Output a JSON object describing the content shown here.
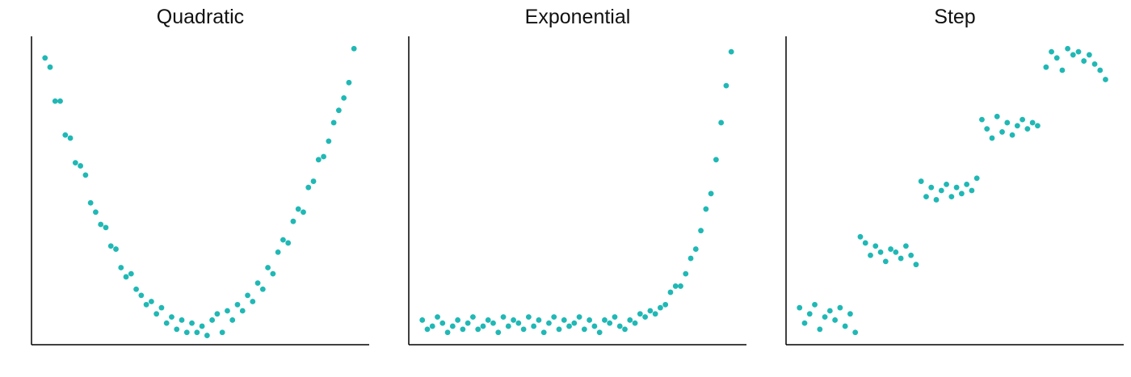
{
  "chart_data": [
    {
      "type": "scatter",
      "title": "Quadratic",
      "color": "#20b8b5",
      "xlim": [
        0,
        100
      ],
      "ylim": [
        0,
        100
      ],
      "x": [
        4,
        5.5,
        7,
        8.5,
        10,
        11.5,
        13,
        14.5,
        16,
        17.5,
        19,
        20.5,
        22,
        23.5,
        25,
        26.5,
        28,
        29.5,
        31,
        32.5,
        34,
        35.5,
        37,
        38.5,
        40,
        41.5,
        43,
        44.5,
        46,
        47.5,
        49,
        50.5,
        52,
        53.5,
        55,
        56.5,
        58,
        59.5,
        61,
        62.5,
        64,
        65.5,
        67,
        68.5,
        70,
        71.5,
        73,
        74.5,
        76,
        77.5,
        79,
        80.5,
        82,
        83.5,
        85,
        86.5,
        88,
        89.5,
        91,
        92.5,
        94,
        95.5
      ],
      "values": [
        93,
        90,
        79,
        79,
        68,
        67,
        59,
        58,
        55,
        46,
        43,
        39,
        38,
        32,
        31,
        25,
        22,
        23,
        18,
        16,
        13,
        14,
        10,
        12,
        7,
        9,
        5,
        8,
        4,
        7,
        4,
        6,
        3,
        8,
        10,
        4,
        11,
        8,
        13,
        11,
        16,
        14,
        20,
        18,
        25,
        23,
        30,
        34,
        33,
        40,
        44,
        43,
        51,
        53,
        60,
        61,
        66,
        72,
        76,
        80,
        85,
        96
      ]
    },
    {
      "type": "scatter",
      "title": "Exponential",
      "color": "#20b8b5",
      "xlim": [
        0,
        100
      ],
      "ylim": [
        0,
        100
      ],
      "x": [
        4,
        5.5,
        7,
        8.5,
        10,
        11.5,
        13,
        14.5,
        16,
        17.5,
        19,
        20.5,
        22,
        23.5,
        25,
        26.5,
        28,
        29.5,
        31,
        32.5,
        34,
        35.5,
        37,
        38.5,
        40,
        41.5,
        43,
        44.5,
        46,
        47.5,
        49,
        50.5,
        52,
        53.5,
        55,
        56.5,
        58,
        59.5,
        61,
        62.5,
        64,
        65.5,
        67,
        68.5,
        70,
        71.5,
        73,
        74.5,
        76,
        77.5,
        79,
        80.5,
        82,
        83.5,
        85,
        86.5,
        88,
        89.5,
        91,
        92.5,
        94,
        95.5
      ],
      "values": [
        8,
        5,
        6,
        9,
        7,
        4,
        6,
        8,
        5,
        7,
        9,
        5,
        6,
        8,
        7,
        4,
        9,
        6,
        8,
        7,
        5,
        9,
        6,
        8,
        4,
        7,
        9,
        5,
        8,
        6,
        7,
        9,
        5,
        8,
        6,
        4,
        8,
        7,
        9,
        6,
        5,
        8,
        7,
        10,
        9,
        11,
        10,
        12,
        13,
        17,
        19,
        19,
        23,
        28,
        31,
        37,
        44,
        49,
        60,
        72,
        84,
        95
      ]
    },
    {
      "type": "scatter",
      "title": "Step",
      "color": "#20b8b5",
      "xlim": [
        0,
        100
      ],
      "ylim": [
        0,
        100
      ],
      "x": [
        4,
        5.5,
        7,
        8.5,
        10,
        11.5,
        13,
        14.5,
        16,
        17.5,
        19,
        20.5,
        22,
        23.5,
        25,
        26.5,
        28,
        29.5,
        31,
        32.5,
        34,
        35.5,
        37,
        38.5,
        40,
        41.5,
        43,
        44.5,
        46,
        47.5,
        49,
        50.5,
        52,
        53.5,
        55,
        56.5,
        58,
        59.5,
        61,
        62.5,
        64,
        65.5,
        67,
        68.5,
        70,
        71.5,
        73,
        74.5,
        77,
        78.6,
        80.2,
        81.8,
        83.4,
        85,
        86.6,
        88.2,
        89.8,
        91.4,
        93,
        94.6
      ],
      "values": [
        12,
        7,
        10,
        13,
        5,
        9,
        11,
        8,
        12,
        6,
        10,
        4,
        35,
        33,
        29,
        32,
        30,
        27,
        31,
        30,
        28,
        32,
        29,
        26,
        53,
        48,
        51,
        47,
        50,
        52,
        48,
        51,
        49,
        52,
        50,
        54,
        73,
        70,
        67,
        74,
        69,
        72,
        68,
        71,
        73,
        70,
        72,
        71,
        90,
        95,
        93,
        89,
        96,
        94,
        95,
        92,
        94,
        91,
        89,
        86
      ]
    }
  ]
}
